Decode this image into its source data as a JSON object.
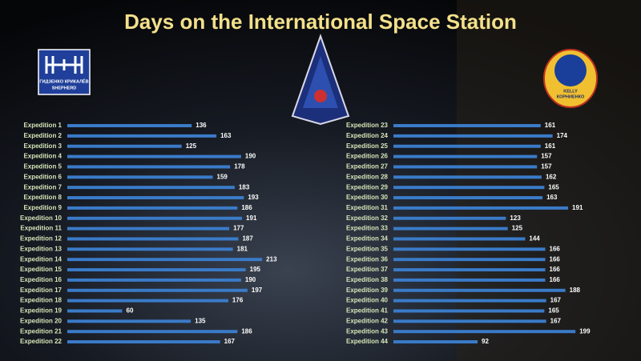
{
  "chart_data": [
    {
      "type": "bar",
      "orientation": "horizontal",
      "title": "Days on the International Space Station",
      "categories": [
        "Expedition 1",
        "Expedition 2",
        "Expedition 3",
        "Expedition 4",
        "Expedition 5",
        "Expedition 6",
        "Expedition 7",
        "Expedition 8",
        "Expedition 9",
        "Expedition 10",
        "Expedition 11",
        "Expedition 12",
        "Expedition 13",
        "Expedition 14",
        "Expedition 15",
        "Expedition 16",
        "Expedition 17",
        "Expedition 18",
        "Expedition 19",
        "Expedition 20",
        "Expedition 21",
        "Expedition 22"
      ],
      "values": [
        136,
        163,
        125,
        190,
        178,
        159,
        183,
        193,
        186,
        191,
        177,
        187,
        181,
        213,
        195,
        190,
        197,
        176,
        60,
        135,
        186,
        167
      ],
      "color": "#3a7bc8",
      "xlim": [
        0,
        240
      ]
    },
    {
      "type": "bar",
      "orientation": "horizontal",
      "categories": [
        "Expedition 23",
        "Expedition 24",
        "Expedition 25",
        "Expedition 26",
        "Expedition 27",
        "Expedition 28",
        "Expedition 29",
        "Expedition 30",
        "Expedition 31",
        "Expedition 32",
        "Expedition 33",
        "Expedition 34",
        "Expedition 35",
        "Expedition 36",
        "Expedition 37",
        "Expedition 38",
        "Expedition 39",
        "Expedition 40",
        "Expedition 41",
        "Expedition 42",
        "Expedition 43",
        "Expedition 44"
      ],
      "values": [
        161,
        174,
        161,
        157,
        157,
        162,
        165,
        163,
        191,
        123,
        125,
        144,
        166,
        166,
        166,
        166,
        188,
        167,
        165,
        167,
        199,
        92
      ],
      "color": "#3a7bc8",
      "xlim": [
        0,
        240
      ]
    }
  ],
  "logos": {
    "left": [
      "ГИДЗЕНКО КРИКАЛЁВ",
      "SHEPHERD"
    ],
    "right": [
      "KELLY",
      "КОРНИЕНКО"
    ]
  }
}
